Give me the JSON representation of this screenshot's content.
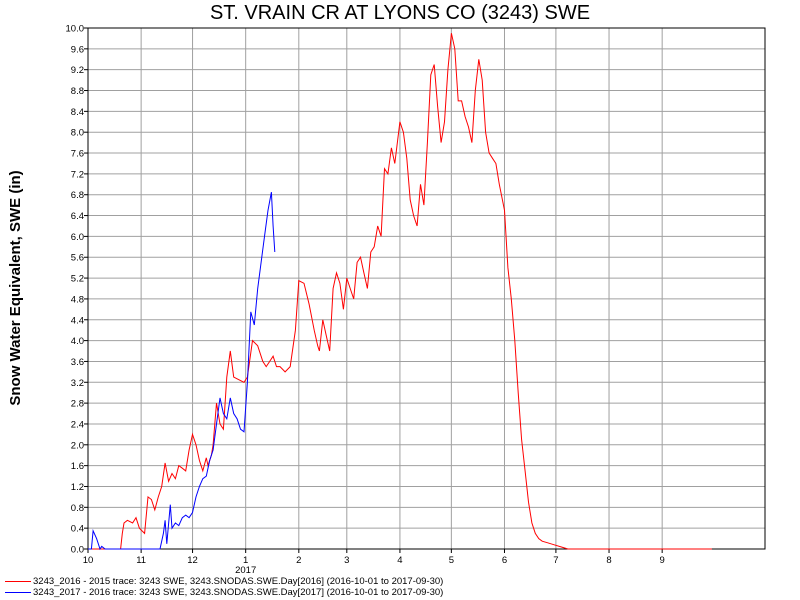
{
  "chart_data": {
    "type": "line",
    "title": "ST. VRAIN CR AT LYONS CO (3243) SWE",
    "ylabel": "Snow Water Equivalent, SWE (in)",
    "xlabel": "",
    "ylim": [
      0,
      10
    ],
    "yticks": [
      "0.0",
      "0.4",
      "0.8",
      "1.2",
      "1.6",
      "2.0",
      "2.4",
      "2.8",
      "3.2",
      "3.6",
      "4.0",
      "4.4",
      "4.8",
      "5.2",
      "5.6",
      "6.0",
      "6.4",
      "6.8",
      "7.2",
      "7.6",
      "8.0",
      "8.4",
      "8.8",
      "9.2",
      "9.6",
      "10.0"
    ],
    "xlim": [
      "2016-10-01",
      "2017-10-31"
    ],
    "xticks": [
      {
        "label": "10",
        "date": "2016-10-01"
      },
      {
        "label": "11",
        "date": "2016-11-01"
      },
      {
        "label": "12",
        "date": "2016-12-01"
      },
      {
        "label": "1",
        "date": "2017-01-01"
      },
      {
        "label": "2",
        "date": "2017-02-01"
      },
      {
        "label": "3",
        "date": "2017-03-01"
      },
      {
        "label": "4",
        "date": "2017-04-01"
      },
      {
        "label": "5",
        "date": "2017-05-01"
      },
      {
        "label": "6",
        "date": "2017-06-01"
      },
      {
        "label": "7",
        "date": "2017-07-01"
      },
      {
        "label": "8",
        "date": "2017-08-01"
      },
      {
        "label": "9",
        "date": "2017-09-01"
      }
    ],
    "year_label": "2017",
    "grid": true,
    "series": [
      {
        "name": "3243_2016 - 2015 trace: 3243 SWE, 3243.SNODAS.SWE.Day[2016] (2016-10-01 to 2017-09-30)",
        "color": "#ff0000",
        "points": [
          [
            "2016-10-01",
            0.0
          ],
          [
            "2016-10-20",
            0.0
          ],
          [
            "2016-10-21",
            0.3
          ],
          [
            "2016-10-22",
            0.5
          ],
          [
            "2016-10-24",
            0.55
          ],
          [
            "2016-10-27",
            0.5
          ],
          [
            "2016-10-29",
            0.6
          ],
          [
            "2016-10-31",
            0.4
          ],
          [
            "2016-11-03",
            0.3
          ],
          [
            "2016-11-05",
            1.0
          ],
          [
            "2016-11-07",
            0.95
          ],
          [
            "2016-11-09",
            0.75
          ],
          [
            "2016-11-11",
            1.0
          ],
          [
            "2016-11-13",
            1.2
          ],
          [
            "2016-11-15",
            1.65
          ],
          [
            "2016-11-17",
            1.3
          ],
          [
            "2016-11-19",
            1.45
          ],
          [
            "2016-11-21",
            1.35
          ],
          [
            "2016-11-23",
            1.6
          ],
          [
            "2016-11-25",
            1.55
          ],
          [
            "2016-11-27",
            1.5
          ],
          [
            "2016-11-29",
            1.9
          ],
          [
            "2016-12-01",
            2.2
          ],
          [
            "2016-12-03",
            2.0
          ],
          [
            "2016-12-05",
            1.7
          ],
          [
            "2016-12-07",
            1.5
          ],
          [
            "2016-12-09",
            1.75
          ],
          [
            "2016-12-10",
            1.6
          ],
          [
            "2016-12-12",
            1.8
          ],
          [
            "2016-12-13",
            2.0
          ],
          [
            "2016-12-15",
            2.8
          ],
          [
            "2016-12-17",
            2.4
          ],
          [
            "2016-12-19",
            2.3
          ],
          [
            "2016-12-21",
            3.3
          ],
          [
            "2016-12-23",
            3.8
          ],
          [
            "2016-12-25",
            3.3
          ],
          [
            "2016-12-28",
            3.25
          ],
          [
            "2016-12-31",
            3.2
          ],
          [
            "2017-01-02",
            3.3
          ],
          [
            "2017-01-05",
            4.0
          ],
          [
            "2017-01-08",
            3.9
          ],
          [
            "2017-01-11",
            3.6
          ],
          [
            "2017-01-13",
            3.5
          ],
          [
            "2017-01-15",
            3.6
          ],
          [
            "2017-01-17",
            3.7
          ],
          [
            "2017-01-19",
            3.5
          ],
          [
            "2017-01-21",
            3.5
          ],
          [
            "2017-01-24",
            3.4
          ],
          [
            "2017-01-27",
            3.5
          ],
          [
            "2017-01-30",
            4.2
          ],
          [
            "2017-02-01",
            5.15
          ],
          [
            "2017-02-04",
            5.1
          ],
          [
            "2017-02-07",
            4.7
          ],
          [
            "2017-02-10",
            4.2
          ],
          [
            "2017-02-12",
            3.9
          ],
          [
            "2017-02-13",
            3.8
          ],
          [
            "2017-02-15",
            4.4
          ],
          [
            "2017-02-17",
            4.1
          ],
          [
            "2017-02-19",
            3.8
          ],
          [
            "2017-02-21",
            5.0
          ],
          [
            "2017-02-23",
            5.3
          ],
          [
            "2017-02-25",
            5.1
          ],
          [
            "2017-02-27",
            4.6
          ],
          [
            "2017-03-01",
            5.2
          ],
          [
            "2017-03-03",
            5.0
          ],
          [
            "2017-03-05",
            4.8
          ],
          [
            "2017-03-07",
            5.5
          ],
          [
            "2017-03-09",
            5.6
          ],
          [
            "2017-03-11",
            5.3
          ],
          [
            "2017-03-13",
            5.0
          ],
          [
            "2017-03-15",
            5.7
          ],
          [
            "2017-03-17",
            5.8
          ],
          [
            "2017-03-19",
            6.2
          ],
          [
            "2017-03-21",
            6.0
          ],
          [
            "2017-03-23",
            7.3
          ],
          [
            "2017-03-25",
            7.2
          ],
          [
            "2017-03-27",
            7.7
          ],
          [
            "2017-03-29",
            7.4
          ],
          [
            "2017-04-01",
            8.2
          ],
          [
            "2017-04-03",
            8.0
          ],
          [
            "2017-04-05",
            7.5
          ],
          [
            "2017-04-07",
            6.7
          ],
          [
            "2017-04-09",
            6.4
          ],
          [
            "2017-04-11",
            6.2
          ],
          [
            "2017-04-13",
            7.0
          ],
          [
            "2017-04-15",
            6.6
          ],
          [
            "2017-04-17",
            7.8
          ],
          [
            "2017-04-19",
            9.1
          ],
          [
            "2017-04-21",
            9.3
          ],
          [
            "2017-04-23",
            8.5
          ],
          [
            "2017-04-25",
            7.8
          ],
          [
            "2017-04-27",
            8.2
          ],
          [
            "2017-04-29",
            9.2
          ],
          [
            "2017-05-01",
            9.9
          ],
          [
            "2017-05-03",
            9.6
          ],
          [
            "2017-05-05",
            8.6
          ],
          [
            "2017-05-07",
            8.6
          ],
          [
            "2017-05-09",
            8.3
          ],
          [
            "2017-05-11",
            8.1
          ],
          [
            "2017-05-13",
            7.8
          ],
          [
            "2017-05-15",
            8.8
          ],
          [
            "2017-05-17",
            9.4
          ],
          [
            "2017-05-19",
            9.0
          ],
          [
            "2017-05-21",
            8.0
          ],
          [
            "2017-05-23",
            7.6
          ],
          [
            "2017-05-25",
            7.5
          ],
          [
            "2017-05-27",
            7.4
          ],
          [
            "2017-05-29",
            7.0
          ],
          [
            "2017-06-01",
            6.5
          ],
          [
            "2017-06-03",
            5.4
          ],
          [
            "2017-06-05",
            4.8
          ],
          [
            "2017-06-07",
            4.0
          ],
          [
            "2017-06-09",
            3.0
          ],
          [
            "2017-06-11",
            2.1
          ],
          [
            "2017-06-13",
            1.5
          ],
          [
            "2017-06-15",
            0.9
          ],
          [
            "2017-06-17",
            0.5
          ],
          [
            "2017-06-19",
            0.3
          ],
          [
            "2017-06-21",
            0.2
          ],
          [
            "2017-06-23",
            0.15
          ],
          [
            "2017-06-26",
            0.12
          ],
          [
            "2017-06-30",
            0.08
          ],
          [
            "2017-07-04",
            0.04
          ],
          [
            "2017-07-08",
            0.0
          ],
          [
            "2017-09-30",
            0.0
          ]
        ]
      },
      {
        "name": "3243_2017 - 2016 trace: 3243 SWE, 3243.SNODAS.SWE.Day[2017] (2016-10-01 to 2017-09-30)",
        "color": "#0000ff",
        "points": [
          [
            "2016-10-01",
            0.0
          ],
          [
            "2016-10-03",
            0.0
          ],
          [
            "2016-10-04",
            0.35
          ],
          [
            "2016-10-06",
            0.2
          ],
          [
            "2016-10-08",
            0.0
          ],
          [
            "2016-10-09",
            0.05
          ],
          [
            "2016-10-11",
            0.0
          ],
          [
            "2016-11-12",
            0.0
          ],
          [
            "2016-11-14",
            0.3
          ],
          [
            "2016-11-15",
            0.55
          ],
          [
            "2016-11-16",
            0.1
          ],
          [
            "2016-11-18",
            0.85
          ],
          [
            "2016-11-19",
            0.4
          ],
          [
            "2016-11-21",
            0.5
          ],
          [
            "2016-11-23",
            0.45
          ],
          [
            "2016-11-25",
            0.6
          ],
          [
            "2016-11-27",
            0.65
          ],
          [
            "2016-11-29",
            0.6
          ],
          [
            "2016-12-01",
            0.7
          ],
          [
            "2016-12-03",
            1.0
          ],
          [
            "2016-12-05",
            1.2
          ],
          [
            "2016-12-07",
            1.35
          ],
          [
            "2016-12-09",
            1.4
          ],
          [
            "2016-12-11",
            1.7
          ],
          [
            "2016-12-13",
            1.9
          ],
          [
            "2016-12-15",
            2.4
          ],
          [
            "2016-12-17",
            2.9
          ],
          [
            "2016-12-19",
            2.6
          ],
          [
            "2016-12-21",
            2.5
          ],
          [
            "2016-12-23",
            2.9
          ],
          [
            "2016-12-25",
            2.6
          ],
          [
            "2016-12-27",
            2.5
          ],
          [
            "2016-12-29",
            2.3
          ],
          [
            "2016-12-31",
            2.25
          ],
          [
            "2017-01-02",
            3.2
          ],
          [
            "2017-01-04",
            4.55
          ],
          [
            "2017-01-06",
            4.3
          ],
          [
            "2017-01-08",
            5.0
          ],
          [
            "2017-01-10",
            5.5
          ],
          [
            "2017-01-12",
            6.0
          ],
          [
            "2017-01-14",
            6.5
          ],
          [
            "2017-01-16",
            6.85
          ],
          [
            "2017-01-17",
            6.2
          ],
          [
            "2017-01-18",
            5.7
          ]
        ]
      }
    ]
  }
}
